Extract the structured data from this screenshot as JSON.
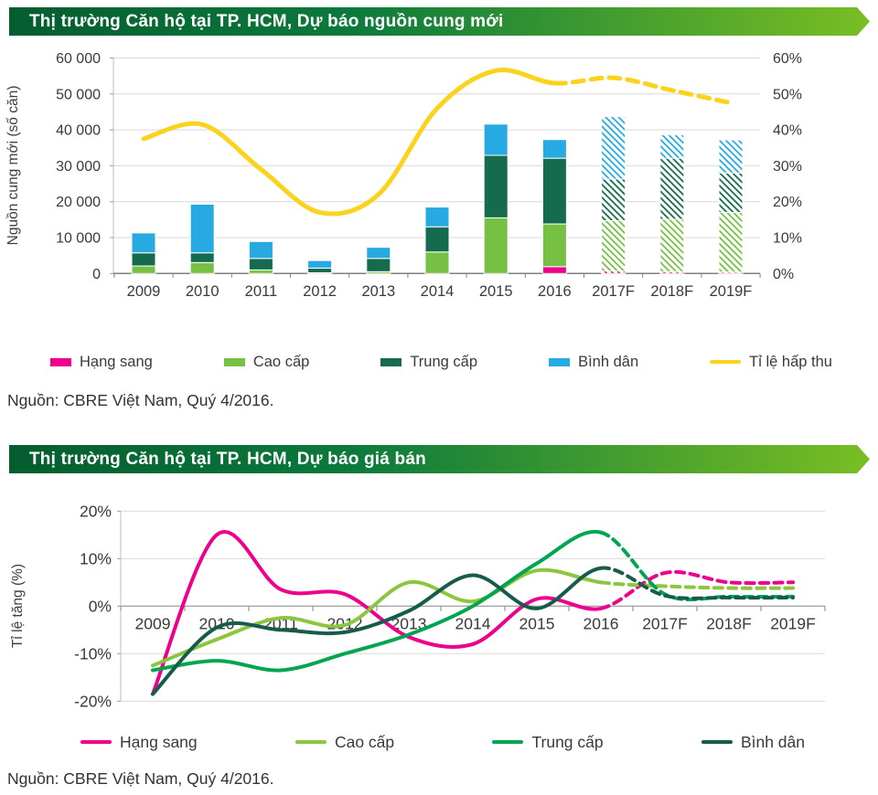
{
  "banner": {
    "gradient_start": "#045D2F",
    "gradient_end": "#79BE23"
  },
  "chart_data": [
    {
      "type": "bar",
      "title": "Thị trường Căn hộ tại TP. HCM, Dự báo nguồn cung mới",
      "source": "Nguồn: CBRE Việt Nam, Quý 4/2016.",
      "categories": [
        "2009",
        "2010",
        "2011",
        "2012",
        "2013",
        "2014",
        "2015",
        "2016",
        "2017F",
        "2018F",
        "2019F"
      ],
      "forecast_start_index": 8,
      "series": [
        {
          "name": "Hạng sang",
          "color": "#EC008C",
          "values": [
            0,
            0,
            0,
            0,
            0,
            0,
            0,
            1900,
            700,
            500,
            400
          ]
        },
        {
          "name": "Cao cấp",
          "color": "#76C043",
          "values": [
            2100,
            3050,
            1000,
            200,
            500,
            6000,
            15500,
            11900,
            14000,
            14600,
            16600
          ]
        },
        {
          "name": "Trung cấp",
          "color": "#146B4E",
          "values": [
            3650,
            2700,
            3200,
            1300,
            3700,
            7000,
            17400,
            18300,
            11600,
            17000,
            11000
          ]
        },
        {
          "name": "Bình dân",
          "color": "#27AAE1",
          "values": [
            5550,
            13550,
            4700,
            2100,
            3100,
            5500,
            8700,
            5200,
            17400,
            6500,
            9200
          ]
        }
      ],
      "line_series": {
        "name": "Tỉ lệ hấp thu",
        "color": "#FBD31E",
        "axis": "right",
        "dashed_from_index": 7,
        "values_percent": [
          37.5,
          41.5,
          29,
          17,
          22,
          46,
          56.5,
          53,
          54.5,
          51,
          47.5
        ]
      },
      "left_axis": {
        "label": "Nguồn cung mới (số căn)",
        "min": 0,
        "max": 60000,
        "tick_labels": [
          "0",
          "10 000",
          "20 000",
          "30 000",
          "40 000",
          "50 000",
          "60 000"
        ]
      },
      "right_axis": {
        "min": 0,
        "max": 60,
        "tick_labels": [
          "0%",
          "10%",
          "20%",
          "30%",
          "40%",
          "50%",
          "60%"
        ]
      }
    },
    {
      "type": "line",
      "title": "Thị trường Căn hộ tại TP. HCM, Dự báo giá bán",
      "source": "Nguồn: CBRE Việt Nam, Quý 4/2016.",
      "categories": [
        "2009",
        "2010",
        "2011",
        "2012",
        "2013",
        "2014",
        "2015",
        "2016",
        "2017F",
        "2018F",
        "2019F"
      ],
      "dashed_from_index": 7,
      "y_axis": {
        "label": "Tỉ lệ tăng (%)",
        "min": -20,
        "max": 20,
        "tick_labels": [
          "20%",
          "10%",
          "0%",
          "-10%",
          "-20%"
        ]
      },
      "series": [
        {
          "name": "Hạng sang",
          "color": "#EC008C",
          "values": [
            -18.5,
            15,
            3.5,
            2.5,
            -6.5,
            -8,
            1.5,
            -0.5,
            7,
            5,
            5
          ]
        },
        {
          "name": "Cao cấp",
          "color": "#8CC63F",
          "values": [
            -12.5,
            -7,
            -2.5,
            -4,
            5,
            1,
            7.5,
            5,
            4.2,
            3.8,
            3.8
          ]
        },
        {
          "name": "Trung cấp",
          "color": "#00A551",
          "values": [
            -13.5,
            -11.5,
            -13.5,
            -10,
            -6,
            0,
            9,
            15.5,
            2.5,
            2,
            2
          ]
        },
        {
          "name": "Bình dân",
          "color": "#175C4B",
          "values": [
            -18.5,
            -4.5,
            -5,
            -5.5,
            -1,
            6.5,
            -0.5,
            8,
            2.2,
            1.8,
            1.8
          ]
        }
      ]
    }
  ]
}
